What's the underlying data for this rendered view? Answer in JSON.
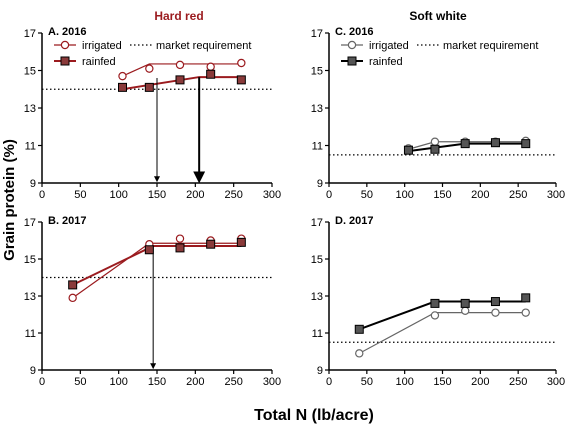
{
  "figure": {
    "shared_ylabel": "Grain protein (%)",
    "shared_xlabel": "Total N (lb/acre)",
    "column_titles": [
      "Hard red",
      "Soft white"
    ]
  },
  "colors": {
    "hard_red": "#9b1b1f",
    "hard_red_fill_rainfed": "#8a3a3a",
    "soft_white_line": "#000000",
    "soft_white_fill_rainfed": "#555555",
    "axis": "#000000"
  },
  "chart_data": [
    {
      "type": "line",
      "panel": "A",
      "title": "A. 2016",
      "column": "Hard red",
      "xlim": [
        0,
        300
      ],
      "ylim": [
        9,
        17
      ],
      "xticks": [
        0,
        50,
        100,
        150,
        200,
        250,
        300
      ],
      "yticks": [
        9,
        11,
        13,
        15,
        17
      ],
      "legend": {
        "placement": "top",
        "entries": [
          "irrigated",
          "rainfed",
          "market requirement"
        ]
      },
      "market_requirement": 14.0,
      "series": [
        {
          "name": "irrigated",
          "marker": "circle-open",
          "x": [
            105,
            140,
            180,
            220,
            260
          ],
          "y": [
            14.7,
            15.1,
            15.3,
            15.2,
            15.4
          ],
          "fit": [
            [
              105,
              14.7
            ],
            [
              140,
              15.35
            ],
            [
              260,
              15.35
            ]
          ]
        },
        {
          "name": "rainfed",
          "marker": "square-filled",
          "x": [
            105,
            140,
            180,
            220,
            260
          ],
          "y": [
            14.1,
            14.1,
            14.5,
            14.8,
            14.5
          ],
          "fit": [
            [
              105,
              14.0
            ],
            [
              205,
              14.65
            ],
            [
              260,
              14.65
            ]
          ]
        }
      ],
      "arrows": [
        {
          "x": 150,
          "from_y": 14.6,
          "to_y": 9.0,
          "weight": "thin"
        },
        {
          "x": 205,
          "from_y": 14.65,
          "to_y": 9.0,
          "weight": "thick"
        }
      ]
    },
    {
      "type": "line",
      "panel": "B",
      "title": "B. 2017",
      "column": "Hard red",
      "xlim": [
        0,
        300
      ],
      "ylim": [
        9,
        17
      ],
      "xticks": [
        0,
        50,
        100,
        150,
        200,
        250,
        300
      ],
      "yticks": [
        9,
        11,
        13,
        15,
        17
      ],
      "market_requirement": 14.0,
      "series": [
        {
          "name": "irrigated",
          "marker": "circle-open",
          "x": [
            40,
            140,
            180,
            220,
            260
          ],
          "y": [
            12.9,
            15.8,
            16.1,
            16.0,
            16.1
          ],
          "fit": [
            [
              40,
              12.9
            ],
            [
              140,
              15.85
            ],
            [
              260,
              15.85
            ]
          ]
        },
        {
          "name": "rainfed",
          "marker": "square-filled",
          "x": [
            40,
            140,
            180,
            220,
            260
          ],
          "y": [
            13.6,
            15.5,
            15.6,
            15.8,
            15.9
          ],
          "fit": [
            [
              40,
              13.6
            ],
            [
              145,
              15.7
            ],
            [
              260,
              15.7
            ]
          ]
        }
      ],
      "arrows": [
        {
          "x": 145,
          "from_y": 15.7,
          "to_y": 9.0,
          "weight": "thin"
        }
      ]
    },
    {
      "type": "line",
      "panel": "C",
      "title": "C. 2016",
      "column": "Soft white",
      "xlim": [
        0,
        300
      ],
      "ylim": [
        9,
        17
      ],
      "xticks": [
        0,
        50,
        100,
        150,
        200,
        250,
        300
      ],
      "yticks": [
        9,
        11,
        13,
        15,
        17
      ],
      "legend": {
        "placement": "top",
        "entries": [
          "irrigated",
          "rainfed",
          "market requirement"
        ]
      },
      "market_requirement": 10.5,
      "series": [
        {
          "name": "irrigated",
          "marker": "circle-open",
          "x": [
            105,
            140,
            180,
            220,
            260
          ],
          "y": [
            10.85,
            11.2,
            11.2,
            11.2,
            11.25
          ],
          "fit": [
            [
              105,
              10.8
            ],
            [
              140,
              11.2
            ],
            [
              260,
              11.2
            ]
          ]
        },
        {
          "name": "rainfed",
          "marker": "square-filled",
          "x": [
            105,
            140,
            180,
            220,
            260
          ],
          "y": [
            10.75,
            10.8,
            11.1,
            11.15,
            11.1
          ],
          "fit": [
            [
              105,
              10.7
            ],
            [
              180,
              11.1
            ],
            [
              260,
              11.1
            ]
          ]
        }
      ],
      "arrows": []
    },
    {
      "type": "line",
      "panel": "D",
      "title": "D. 2017",
      "column": "Soft white",
      "xlim": [
        0,
        300
      ],
      "ylim": [
        9,
        17
      ],
      "xticks": [
        0,
        50,
        100,
        150,
        200,
        250,
        300
      ],
      "yticks": [
        9,
        11,
        13,
        15,
        17
      ],
      "market_requirement": 10.5,
      "series": [
        {
          "name": "irrigated",
          "marker": "circle-open",
          "x": [
            40,
            140,
            180,
            220,
            260
          ],
          "y": [
            9.9,
            11.95,
            12.2,
            12.1,
            12.1
          ],
          "fit": [
            [
              40,
              9.9
            ],
            [
              140,
              12.1
            ],
            [
              260,
              12.1
            ]
          ]
        },
        {
          "name": "rainfed",
          "marker": "square-filled",
          "x": [
            40,
            140,
            180,
            220,
            260
          ],
          "y": [
            11.2,
            12.6,
            12.6,
            12.7,
            12.9
          ],
          "fit": [
            [
              40,
              11.2
            ],
            [
              140,
              12.7
            ],
            [
              260,
              12.7
            ]
          ]
        }
      ],
      "arrows": []
    }
  ]
}
